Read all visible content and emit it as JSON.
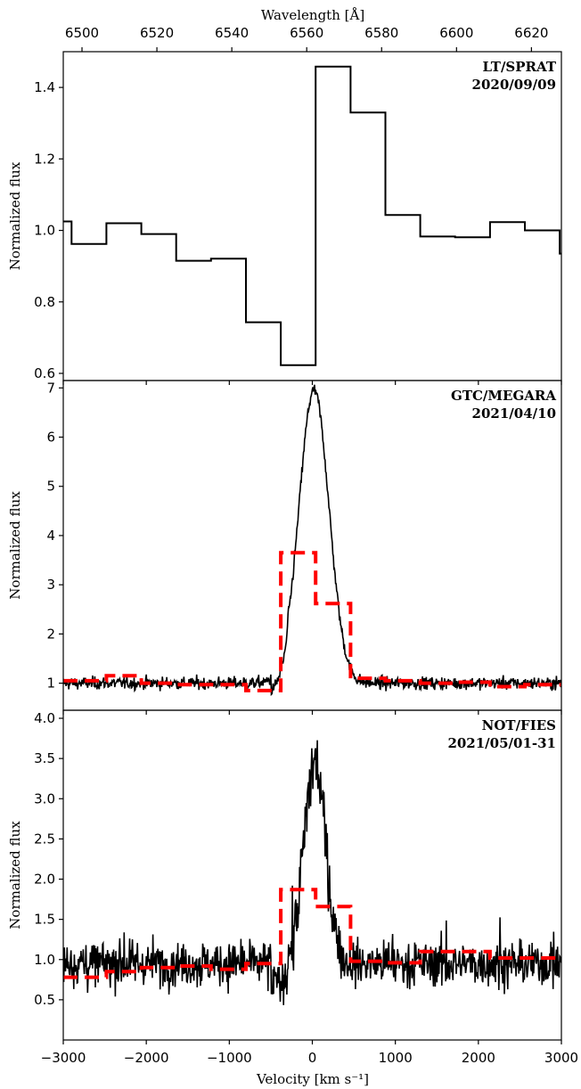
{
  "figure": {
    "top_axis_label": "Wavelength [Å]",
    "bottom_axis_label": "Velocity [km s⁻¹]",
    "top_ticks": [
      "6500",
      "6520",
      "6540",
      "6560",
      "6580",
      "6600",
      "6620"
    ],
    "bottom_ticks": [
      "−3000",
      "−2000",
      "−1000",
      "0",
      "1000",
      "2000",
      "3000"
    ]
  },
  "colors": {
    "observed": "#000000",
    "binned": "#ff0000"
  },
  "chart_data": [
    {
      "type": "line",
      "panel": "LT/SPRAT",
      "label_line1": "LT/SPRAT",
      "label_line2": "2020/09/09",
      "ylabel": "Normalized flux",
      "xlabel": "Velocity [km s⁻¹]",
      "xlim": [
        -3000,
        3000
      ],
      "ylim": [
        0.58,
        1.5
      ],
      "yticks": [
        "0.6",
        "0.8",
        "1.0",
        "1.2",
        "1.4"
      ],
      "ytick_values": [
        0.6,
        0.8,
        1.0,
        1.2,
        1.4
      ],
      "series": [
        {
          "style": "steps",
          "edges": [
            -3000,
            -2900,
            -2480,
            -2060,
            -1640,
            -1220,
            -800,
            -380,
            40,
            460,
            880,
            1300,
            1720,
            2140,
            2560,
            2980,
            3000
          ],
          "values": [
            1.025,
            0.962,
            1.02,
            0.99,
            0.915,
            0.921,
            0.743,
            0.623,
            1.458,
            1.33,
            1.043,
            0.983,
            0.981,
            1.023,
            1.0,
            0.935
          ]
        }
      ]
    },
    {
      "type": "line",
      "panel": "GTC/MEGARA",
      "label_line1": "GTC/MEGARA",
      "label_line2": "2021/04/10",
      "ylabel": "Normalized flux",
      "xlabel": "Velocity [km s⁻¹]",
      "xlim": [
        -3000,
        3000
      ],
      "ylim": [
        0.45,
        7.15
      ],
      "yticks": [
        "1",
        "2",
        "3",
        "4",
        "5",
        "6",
        "7"
      ],
      "ytick_values": [
        1,
        2,
        3,
        4,
        5,
        6,
        7
      ],
      "profile": {
        "continuum": 1.0,
        "noise": 0.09,
        "peak": 5.95,
        "center": 20,
        "width": 180
      },
      "series": [
        {
          "style": "steps-dashed",
          "edges": [
            -3000,
            -2480,
            -2060,
            -1640,
            -1220,
            -800,
            -380,
            40,
            460,
            880,
            1300,
            1720,
            2140,
            2560,
            3000
          ],
          "values": [
            1.05,
            1.15,
            1.0,
            0.97,
            0.97,
            0.85,
            3.65,
            2.62,
            1.1,
            1.05,
            1.0,
            1.02,
            0.93,
            0.97
          ]
        }
      ]
    },
    {
      "type": "line",
      "panel": "NOT/FIES",
      "label_line1": "NOT/FIES",
      "label_line2": "2021/05/01-31",
      "ylabel": "Normalized flux",
      "xlabel": "Velocity [km s⁻¹]",
      "xlim": [
        -3000,
        3000
      ],
      "ylim": [
        0.0,
        4.1
      ],
      "yticks": [
        "0.5",
        "1.0",
        "1.5",
        "2.0",
        "2.5",
        "3.0",
        "3.5",
        "4.0"
      ],
      "ytick_values": [
        0.5,
        1.0,
        1.5,
        2.0,
        2.5,
        3.0,
        3.5,
        4.0
      ],
      "profile": {
        "continuum": 0.95,
        "noise": 0.2,
        "peak": 2.5,
        "center": 30,
        "width": 130
      },
      "series": [
        {
          "style": "steps-dashed",
          "edges": [
            -3000,
            -2480,
            -2060,
            -1640,
            -1220,
            -800,
            -380,
            40,
            460,
            880,
            1300,
            1720,
            2140,
            2560,
            3000
          ],
          "values": [
            0.78,
            0.85,
            0.9,
            0.92,
            0.88,
            0.95,
            1.87,
            1.66,
            0.98,
            0.96,
            1.1,
            1.1,
            1.02,
            1.02
          ]
        }
      ]
    }
  ]
}
